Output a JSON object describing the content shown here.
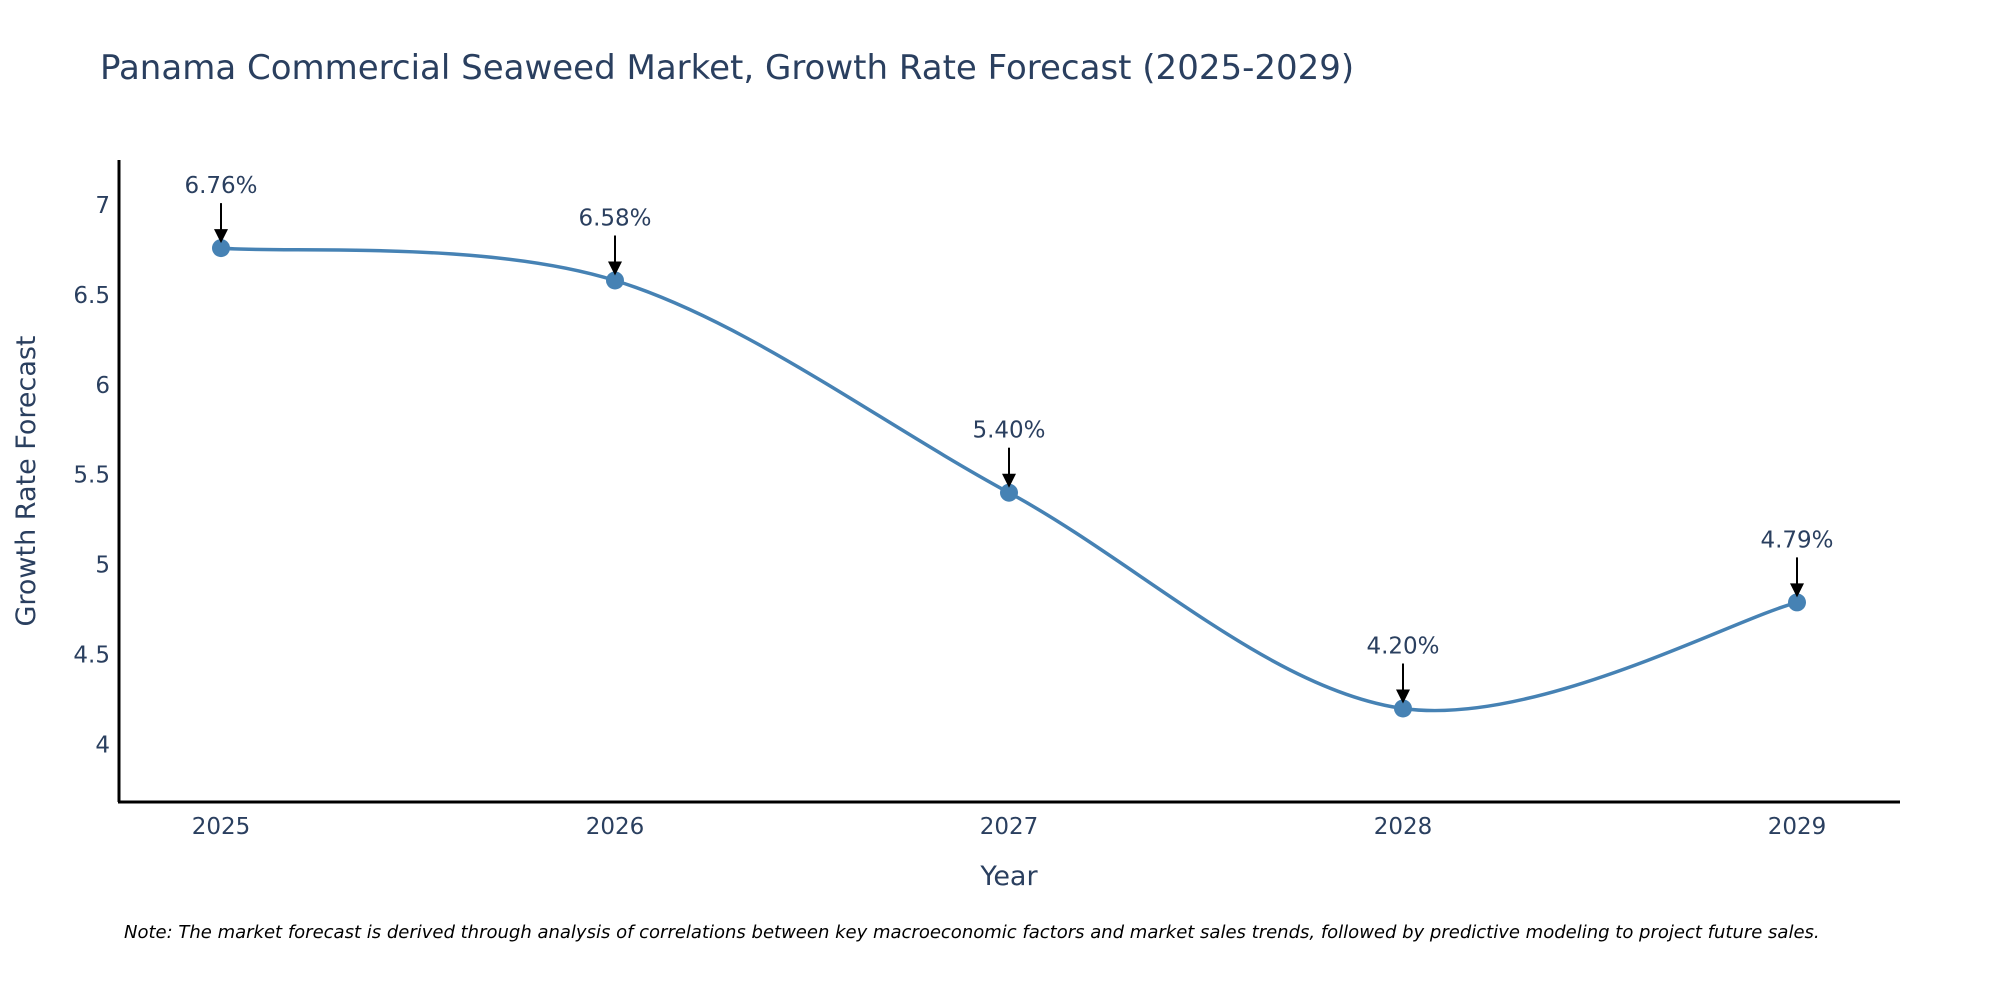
{
  "chart_data": {
    "type": "line",
    "title": "Panama Commercial Seaweed Market, Growth Rate Forecast (2025-2029)",
    "xlabel": "Year",
    "ylabel": "Growth Rate Forecast",
    "categories": [
      "2025",
      "2026",
      "2027",
      "2028",
      "2029"
    ],
    "series": [
      {
        "name": "Growth Rate Forecast",
        "values": [
          6.76,
          6.58,
          5.4,
          4.2,
          4.79
        ],
        "labels": [
          "6.76%",
          "6.58%",
          "5.40%",
          "4.20%",
          "4.79%"
        ]
      }
    ],
    "ylim": [
      3.68,
      7.25
    ],
    "yticks": [
      4,
      4.5,
      5,
      5.5,
      6,
      6.5,
      7
    ],
    "ytick_labels": [
      "4",
      "4.5",
      "5",
      "5.5",
      "6",
      "6.5",
      "7"
    ],
    "grid": false,
    "line_shape": "spline",
    "line_color": "#4682b4",
    "marker_color": "#4682b4",
    "text_color": "#2a3f5f",
    "annotation_arrow_color": "#000000",
    "note": "Note: The market forecast is derived through analysis of correlations between key macroeconomic factors and market sales trends, followed by predictive modeling to project future sales."
  }
}
